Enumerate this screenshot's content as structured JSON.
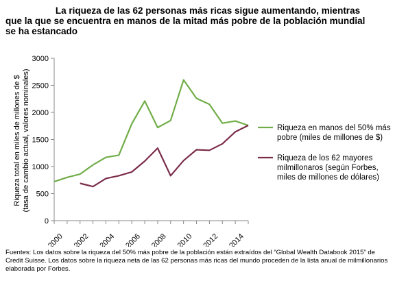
{
  "chart_data": {
    "type": "line",
    "title_lines": [
      "La riqueza de las 62 personas más ricas sigue aumentando, mientras",
      "que la que se encuentra en manos de la mitad más pobre de la población mundial",
      "se ha estancado"
    ],
    "ylabel_lines": [
      "Riqueza total en miles de millones de $",
      "(tasa de cambio actual, valores nominales)"
    ],
    "ylim": [
      0,
      3000
    ],
    "y_ticks": [
      "0",
      "500",
      "1000",
      "1500",
      "2000",
      "2500",
      "3000"
    ],
    "y_tick_values": [
      0,
      500,
      1000,
      1500,
      2000,
      2500,
      3000
    ],
    "xlim": [
      2000,
      2015
    ],
    "x_ticks": [
      "2000",
      "2002",
      "2004",
      "2006",
      "2008",
      "2010",
      "2012",
      "2014"
    ],
    "x_tick_values": [
      2000,
      2002,
      2004,
      2006,
      2008,
      2010,
      2012,
      2014
    ],
    "grid": false,
    "legend_placement": "right",
    "series": [
      {
        "name_lines": [
          "Riqueza en manos del 50% más",
          "pobre (miles de millones de $)"
        ],
        "color": "#70ad47",
        "x": [
          2000,
          2001,
          2002,
          2003,
          2004,
          2005,
          2006,
          2007,
          2008,
          2009,
          2010,
          2011,
          2012,
          2013,
          2014,
          2015
        ],
        "values": [
          720,
          800,
          860,
          1030,
          1170,
          1210,
          1790,
          2210,
          1720,
          1850,
          2600,
          2260,
          2150,
          1800,
          1840,
          1760
        ]
      },
      {
        "name_lines": [
          "Riqueza de los 62 mayores",
          "milmillonaros (según Forbes,",
          "miles de millones de dólares)"
        ],
        "color": "#7b2c4a",
        "x": [
          2002,
          2003,
          2004,
          2005,
          2006,
          2007,
          2008,
          2009,
          2010,
          2011,
          2012,
          2013,
          2014,
          2015
        ],
        "values": [
          690,
          630,
          780,
          830,
          900,
          1100,
          1340,
          830,
          1110,
          1310,
          1300,
          1420,
          1640,
          1760
        ]
      }
    ]
  },
  "source_text": "Fuentes: Los datos sobre la riqueza del 50% más pobre de la población están extraídos del “Global Wealth Databook 2015” de Credit Suisse. Los datos sobre la riqueza neta de las 62 personas más ricas del mundo proceden de la lista anual de milmillonarios elaborada por Forbes."
}
